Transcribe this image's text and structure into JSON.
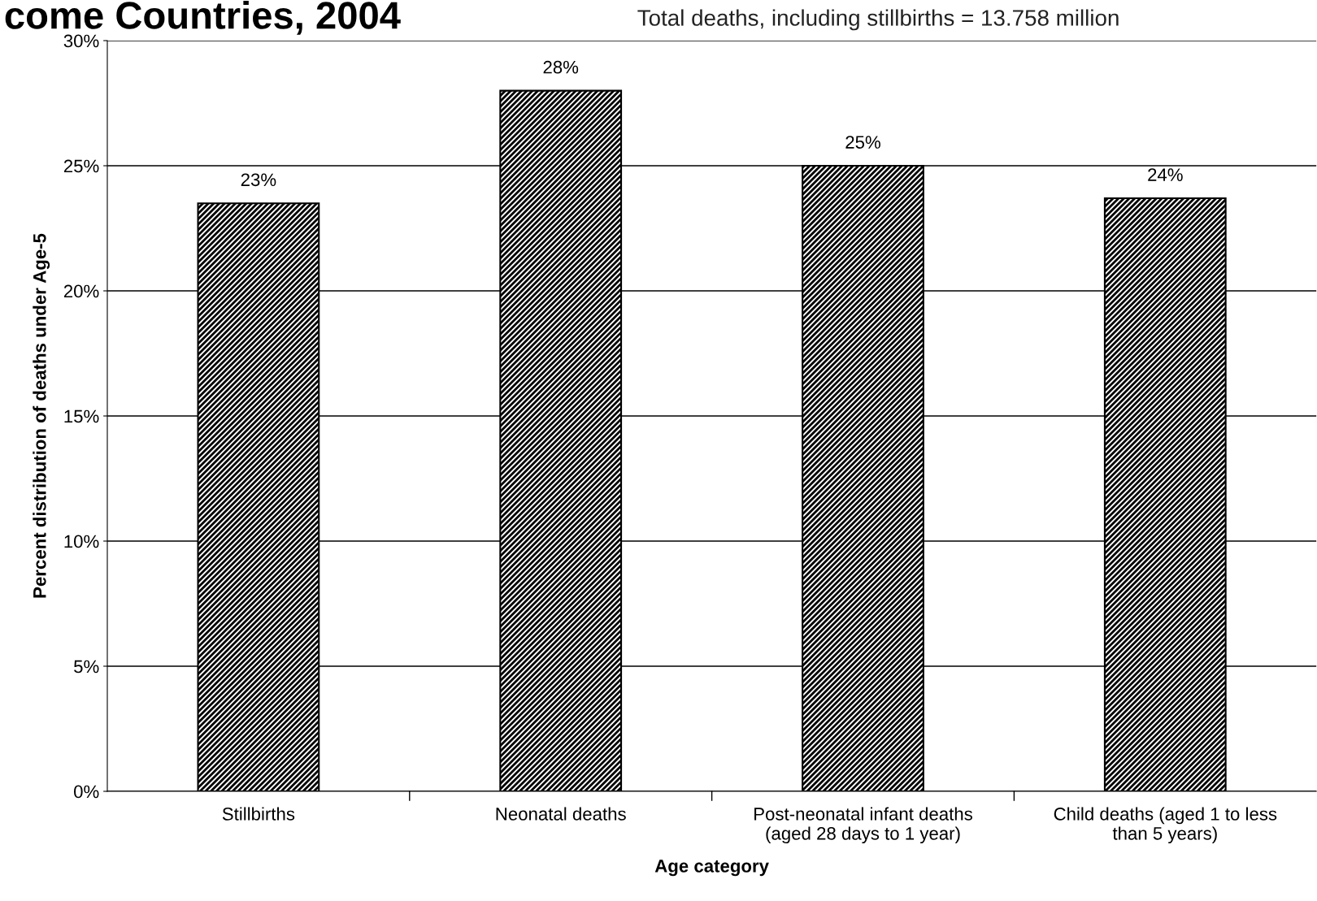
{
  "chart_data": {
    "type": "bar",
    "title": "come Countries, 2004",
    "subtitle": "Total deaths, including stillbirths = 13.758 million",
    "xlabel": "Age category",
    "ylabel": "Percent distribution of deaths under Age-5",
    "categories": [
      "Stillbirths",
      "Neonatal deaths",
      "Post-neonatal infant deaths\n(aged 28 days to 1 year)",
      "Child deaths (aged 1 to less\nthan 5 years)"
    ],
    "values": [
      23.5,
      28.0,
      25.0,
      23.7
    ],
    "value_labels": [
      "23%",
      "28%",
      "25%",
      "24%"
    ],
    "color": "#000000",
    "ylim": [
      0,
      30
    ],
    "yticks": [
      {
        "value": 0,
        "label": "0%"
      },
      {
        "value": 5,
        "label": "5%"
      },
      {
        "value": 10,
        "label": "10%"
      },
      {
        "value": 15,
        "label": "15%"
      },
      {
        "value": 20,
        "label": "20%"
      },
      {
        "value": 25,
        "label": "25%"
      },
      {
        "value": 30,
        "label": "30%"
      }
    ],
    "grid": "y"
  }
}
